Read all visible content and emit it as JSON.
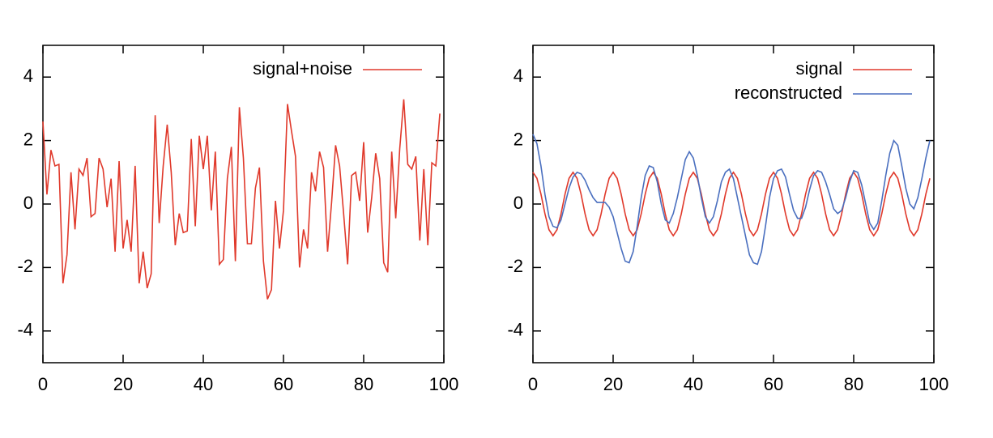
{
  "chart_data": [
    {
      "type": "line",
      "legend": "upper right",
      "x": [
        0,
        1,
        2,
        3,
        4,
        5,
        6,
        7,
        8,
        9,
        10,
        11,
        12,
        13,
        14,
        15,
        16,
        17,
        18,
        19,
        20,
        21,
        22,
        23,
        24,
        25,
        26,
        27,
        28,
        29,
        30,
        31,
        32,
        33,
        34,
        35,
        36,
        37,
        38,
        39,
        40,
        41,
        42,
        43,
        44,
        45,
        46,
        47,
        48,
        49,
        50,
        51,
        52,
        53,
        54,
        55,
        56,
        57,
        58,
        59,
        60,
        61,
        62,
        63,
        64,
        65,
        66,
        67,
        68,
        69,
        70,
        71,
        72,
        73,
        74,
        75,
        76,
        77,
        78,
        79,
        80,
        81,
        82,
        83,
        84,
        85,
        86,
        87,
        88,
        89,
        90,
        91,
        92,
        93,
        94,
        95,
        96,
        97,
        98,
        99
      ],
      "series": [
        {
          "name": "signal+noise",
          "color": "#e0392b",
          "values": [
            2.6,
            0.3,
            1.7,
            1.2,
            1.25,
            -2.5,
            -1.6,
            1.0,
            -0.8,
            1.1,
            0.9,
            1.45,
            -0.4,
            -0.3,
            1.45,
            1.1,
            -0.1,
            0.8,
            -1.5,
            1.35,
            -1.4,
            -0.5,
            -1.5,
            1.2,
            -2.5,
            -1.5,
            -2.65,
            -2.2,
            2.8,
            -0.6,
            1.2,
            2.5,
            1.0,
            -1.3,
            -0.3,
            -0.9,
            -0.85,
            2.05,
            -0.7,
            2.15,
            1.1,
            2.15,
            -0.2,
            1.65,
            -1.9,
            -1.75,
            0.8,
            1.8,
            -1.8,
            3.05,
            1.45,
            -1.25,
            -1.25,
            0.5,
            1.15,
            -1.8,
            -3.0,
            -2.7,
            0.1,
            -1.4,
            -0.2,
            3.15,
            2.3,
            1.5,
            -2.0,
            -0.8,
            -1.4,
            1.0,
            0.4,
            1.65,
            1.15,
            -1.5,
            0.05,
            1.85,
            1.2,
            -0.3,
            -1.9,
            0.9,
            1.0,
            0.1,
            1.95,
            -0.9,
            0.2,
            1.6,
            0.8,
            -1.85,
            -2.15,
            1.65,
            -0.45,
            1.75,
            3.3,
            1.25,
            1.1,
            1.5,
            -1.15,
            1.1,
            -1.3,
            1.3,
            1.2,
            2.85
          ]
        }
      ],
      "xlim": [
        0,
        100
      ],
      "ylim": [
        -5,
        5
      ],
      "xticks": [
        0,
        20,
        40,
        60,
        80,
        100
      ],
      "yticks": [
        -4,
        -2,
        0,
        2,
        4
      ]
    },
    {
      "type": "line",
      "legend": "upper right",
      "x": [
        0,
        1,
        2,
        3,
        4,
        5,
        6,
        7,
        8,
        9,
        10,
        11,
        12,
        13,
        14,
        15,
        16,
        17,
        18,
        19,
        20,
        21,
        22,
        23,
        24,
        25,
        26,
        27,
        28,
        29,
        30,
        31,
        32,
        33,
        34,
        35,
        36,
        37,
        38,
        39,
        40,
        41,
        42,
        43,
        44,
        45,
        46,
        47,
        48,
        49,
        50,
        51,
        52,
        53,
        54,
        55,
        56,
        57,
        58,
        59,
        60,
        61,
        62,
        63,
        64,
        65,
        66,
        67,
        68,
        69,
        70,
        71,
        72,
        73,
        74,
        75,
        76,
        77,
        78,
        79,
        80,
        81,
        82,
        83,
        84,
        85,
        86,
        87,
        88,
        89,
        90,
        91,
        92,
        93,
        94,
        95,
        96,
        97,
        98,
        99
      ],
      "series": [
        {
          "name": "signal",
          "color": "#e0392b",
          "values": [
            1,
            0.81,
            0.31,
            -0.31,
            -0.81,
            -1,
            -0.81,
            -0.31,
            0.31,
            0.81,
            1,
            0.81,
            0.31,
            -0.31,
            -0.81,
            -1,
            -0.81,
            -0.31,
            0.31,
            0.81,
            1,
            0.81,
            0.31,
            -0.31,
            -0.81,
            -1,
            -0.81,
            -0.31,
            0.31,
            0.81,
            1,
            0.81,
            0.31,
            -0.31,
            -0.81,
            -1,
            -0.81,
            -0.31,
            0.31,
            0.81,
            1,
            0.81,
            0.31,
            -0.31,
            -0.81,
            -1,
            -0.81,
            -0.31,
            0.31,
            0.81,
            1,
            0.81,
            0.31,
            -0.31,
            -0.81,
            -1,
            -0.81,
            -0.31,
            0.31,
            0.81,
            1,
            0.81,
            0.31,
            -0.31,
            -0.81,
            -1,
            -0.81,
            -0.31,
            0.31,
            0.81,
            1,
            0.81,
            0.31,
            -0.31,
            -0.81,
            -1,
            -0.81,
            -0.31,
            0.31,
            0.81,
            1,
            0.81,
            0.31,
            -0.31,
            -0.81,
            -1,
            -0.81,
            -0.31,
            0.31,
            0.81,
            1,
            0.81,
            0.31,
            -0.31,
            -0.81,
            -1,
            -0.81,
            -0.31,
            0.31,
            0.81
          ]
        },
        {
          "name": "reconstructed",
          "color": "#4a6fbf",
          "values": [
            2.2,
            1.9,
            1.2,
            0.3,
            -0.4,
            -0.7,
            -0.75,
            -0.5,
            0,
            0.5,
            0.85,
            1.0,
            0.95,
            0.75,
            0.45,
            0.2,
            0.05,
            0.05,
            0.05,
            -0.1,
            -0.4,
            -0.9,
            -1.4,
            -1.8,
            -1.85,
            -1.5,
            -0.7,
            0.2,
            0.9,
            1.2,
            1.15,
            0.7,
            0,
            -0.5,
            -0.6,
            -0.3,
            0.2,
            0.8,
            1.4,
            1.65,
            1.45,
            0.9,
            0.2,
            -0.4,
            -0.6,
            -0.4,
            0.1,
            0.7,
            1.0,
            1.1,
            0.8,
            0.2,
            -0.4,
            -1.0,
            -1.6,
            -1.85,
            -1.9,
            -1.5,
            -0.7,
            0.2,
            0.8,
            1.05,
            1.1,
            0.85,
            0.3,
            -0.2,
            -0.45,
            -0.45,
            -0.1,
            0.45,
            0.9,
            1.05,
            1.0,
            0.7,
            0.3,
            -0.15,
            -0.3,
            -0.2,
            0.2,
            0.7,
            1.05,
            1.0,
            0.6,
            0,
            -0.6,
            -0.8,
            -0.6,
            0.1,
            0.9,
            1.6,
            2.0,
            1.85,
            1.2,
            0.5,
            0,
            -0.15,
            0.2,
            0.8,
            1.45,
            2.0
          ]
        }
      ],
      "xlim": [
        0,
        100
      ],
      "ylim": [
        -5,
        5
      ],
      "xticks": [
        0,
        20,
        40,
        60,
        80,
        100
      ],
      "yticks": [
        -4,
        -2,
        0,
        2,
        4
      ]
    }
  ]
}
